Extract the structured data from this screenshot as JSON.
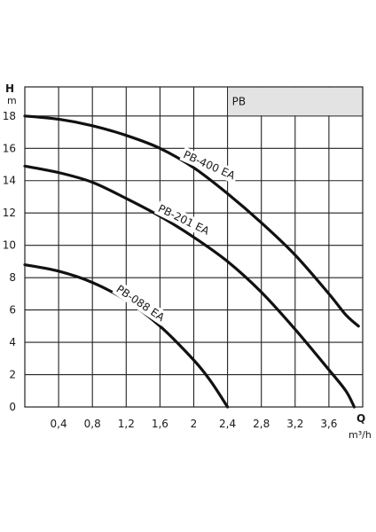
{
  "chart_data": {
    "type": "line",
    "xlabel": "Q",
    "xunit": "m³/h",
    "ylabel": "H",
    "yunit": "m",
    "xlim": [
      0,
      4.0
    ],
    "ylim": [
      0,
      19.8
    ],
    "x_ticks": [
      0.4,
      0.8,
      1.2,
      1.6,
      2.0,
      2.4,
      2.8,
      3.2,
      3.6
    ],
    "x_tick_labels": [
      "0,4",
      "0,8",
      "1,2",
      "1,6",
      "2",
      "2,4",
      "2,8",
      "3,2",
      "3,6"
    ],
    "y_ticks": [
      0,
      2,
      4,
      6,
      8,
      10,
      12,
      14,
      16,
      18
    ],
    "y_tick_labels": [
      "0",
      "2",
      "4",
      "6",
      "8",
      "10",
      "12",
      "14",
      "16",
      "18"
    ],
    "grid": true,
    "badge": "PB",
    "series": [
      {
        "name": "PB-400 EA",
        "x": [
          0,
          0.4,
          0.8,
          1.2,
          1.6,
          2.0,
          2.4,
          2.8,
          3.2,
          3.6,
          3.8,
          3.95
        ],
        "y": [
          18.0,
          17.8,
          17.4,
          16.8,
          16.0,
          14.8,
          13.2,
          11.4,
          9.4,
          7.0,
          5.7,
          5.0
        ]
      },
      {
        "name": "PB-201 EA",
        "x": [
          0,
          0.4,
          0.8,
          1.2,
          1.6,
          2.0,
          2.4,
          2.8,
          3.2,
          3.6,
          3.8,
          3.9
        ],
        "y": [
          14.9,
          14.5,
          13.9,
          12.9,
          11.8,
          10.5,
          9.0,
          7.1,
          4.8,
          2.3,
          1.0,
          0.0
        ]
      },
      {
        "name": "PB-088 EA",
        "x": [
          0,
          0.4,
          0.8,
          1.2,
          1.6,
          2.0,
          2.2,
          2.4
        ],
        "y": [
          8.8,
          8.4,
          7.7,
          6.6,
          5.0,
          2.9,
          1.6,
          0.0
        ]
      }
    ]
  }
}
